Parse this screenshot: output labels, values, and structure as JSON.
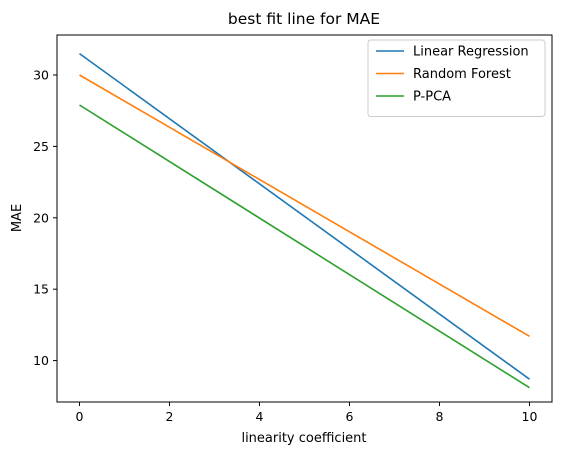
{
  "chart_data": {
    "type": "line",
    "title": "best fit line for MAE",
    "xlabel": "linearity coefficient",
    "ylabel": "MAE",
    "xlim": [
      -0.5,
      10.5
    ],
    "ylim": [
      7.1,
      32.8
    ],
    "xticks": [
      0,
      2,
      4,
      6,
      8,
      10
    ],
    "yticks": [
      10,
      15,
      20,
      25,
      30
    ],
    "grid": false,
    "legend_position": "top-right",
    "series": [
      {
        "name": "Linear Regression",
        "color": "#1f77b4",
        "x": [
          0,
          10
        ],
        "y": [
          31.5,
          8.7
        ]
      },
      {
        "name": "Random Forest",
        "color": "#ff7f0e",
        "x": [
          0,
          10
        ],
        "y": [
          30.0,
          11.7
        ]
      },
      {
        "name": "P-PCA",
        "color": "#2ca02c",
        "x": [
          0,
          10
        ],
        "y": [
          27.9,
          8.1
        ]
      }
    ]
  }
}
